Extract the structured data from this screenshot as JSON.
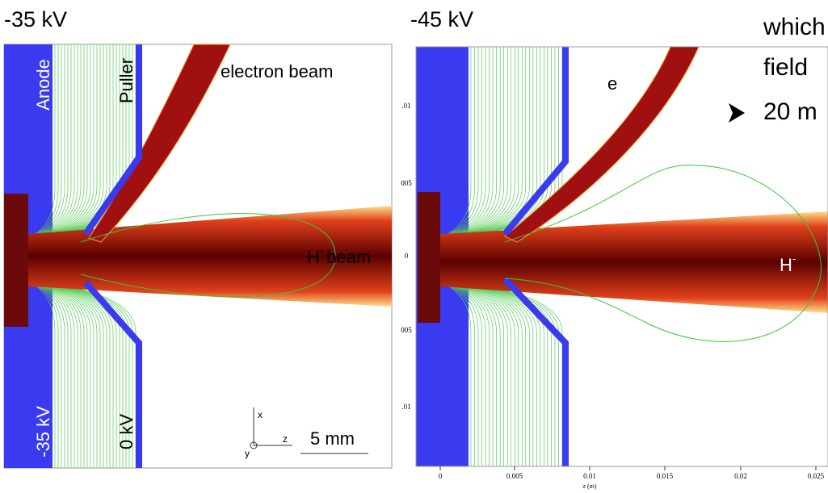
{
  "left_panel": {
    "label": "-35 kV",
    "annotations": {
      "anode": "Anode",
      "puller": "Puller",
      "electron_beam": "electron beam",
      "h_beam": "H",
      "h_beam_sup": "-",
      "h_beam_suffix": "beam",
      "anode_voltage": "-35 kV",
      "puller_voltage": "0 kV",
      "scale": "5 mm",
      "axis_x": "x",
      "axis_y": "y",
      "axis_z": "z"
    }
  },
  "right_panel": {
    "label": "-45 kV",
    "annotations": {
      "electron": "e",
      "h": "H",
      "h_sup": "-"
    },
    "y_tick_labels": [
      ".01",
      "005",
      "0",
      "005",
      ".01"
    ],
    "x_tick_labels": [
      "0",
      "0.005",
      "0.01",
      "0.015",
      "0.02",
      "0.025"
    ],
    "x_label": "z (m)"
  },
  "bullets": [
    "which",
    "field",
    "20 m"
  ]
}
